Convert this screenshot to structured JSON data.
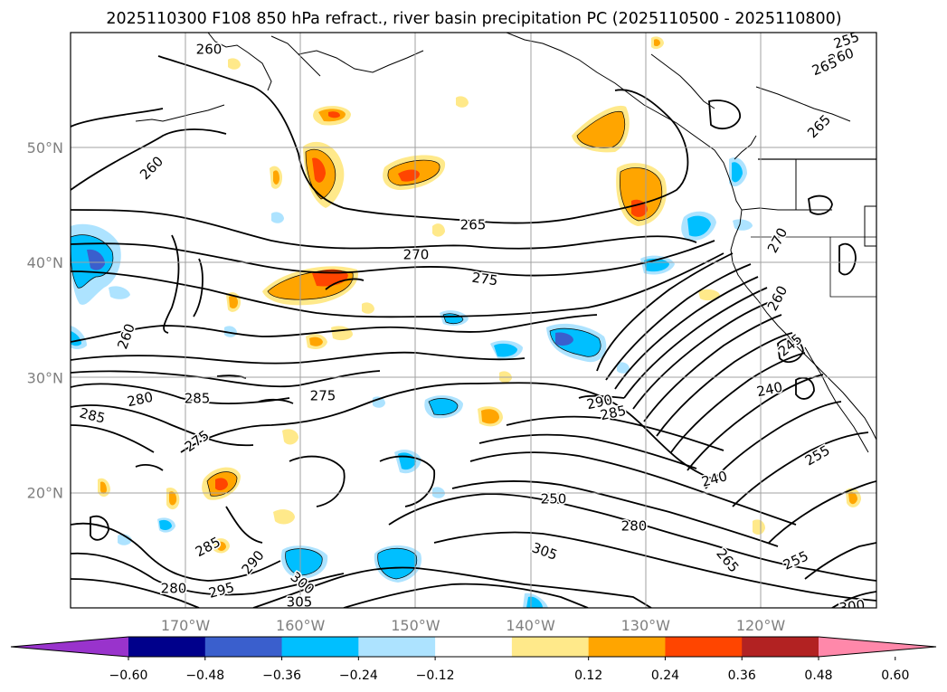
{
  "title": "2025110300 F108 850 hPa refract., river basin precipitation PC (2025110500 - 2025110800)",
  "map": {
    "lat_labels": [
      "50°N",
      "40°N",
      "30°N",
      "20°N"
    ],
    "lat_values": [
      50,
      40,
      30,
      20
    ],
    "lon_labels": [
      "170°W",
      "160°W",
      "150°W",
      "140°W",
      "130°W",
      "120°W"
    ],
    "lon_values": [
      -170,
      -160,
      -150,
      -140,
      -130,
      -120
    ],
    "contour_labels": [
      {
        "text": "260"
      },
      {
        "text": "255"
      },
      {
        "text": "260"
      },
      {
        "text": "265"
      },
      {
        "text": "265"
      },
      {
        "text": "260"
      },
      {
        "text": "265"
      },
      {
        "text": "270"
      },
      {
        "text": "275"
      },
      {
        "text": "270"
      },
      {
        "text": "260"
      },
      {
        "text": "260"
      },
      {
        "text": "245"
      },
      {
        "text": "280"
      },
      {
        "text": "285"
      },
      {
        "text": "275"
      },
      {
        "text": "285"
      },
      {
        "text": "290"
      },
      {
        "text": "285"
      },
      {
        "text": "240"
      },
      {
        "text": "275"
      },
      {
        "text": "255"
      },
      {
        "text": "240"
      },
      {
        "text": "250"
      },
      {
        "text": "280"
      },
      {
        "text": "285"
      },
      {
        "text": "290"
      },
      {
        "text": "305"
      },
      {
        "text": "265"
      },
      {
        "text": "255"
      },
      {
        "text": "280"
      },
      {
        "text": "295"
      },
      {
        "text": "300"
      },
      {
        "text": "305"
      },
      {
        "text": "300"
      }
    ]
  },
  "colorbar": {
    "tick_labels": [
      "−0.60",
      "−0.48",
      "−0.36",
      "−0.24",
      "−0.12",
      "0.12",
      "0.24",
      "0.36",
      "0.48",
      "0.60"
    ],
    "tick_values": [
      -0.6,
      -0.48,
      -0.36,
      -0.24,
      -0.12,
      0.12,
      0.24,
      0.36,
      0.48,
      0.6
    ],
    "colors": [
      "#9933cc",
      "#00008b",
      "#3a5fcd",
      "#00bfff",
      "#ade3ff",
      "#ffffff",
      "#ffe98a",
      "#ffa500",
      "#ff4500",
      "#b22222",
      "#ff88aa"
    ]
  },
  "colors": {
    "contour": "#000000",
    "grid": "#a0a0a0",
    "coast": "#000000"
  }
}
